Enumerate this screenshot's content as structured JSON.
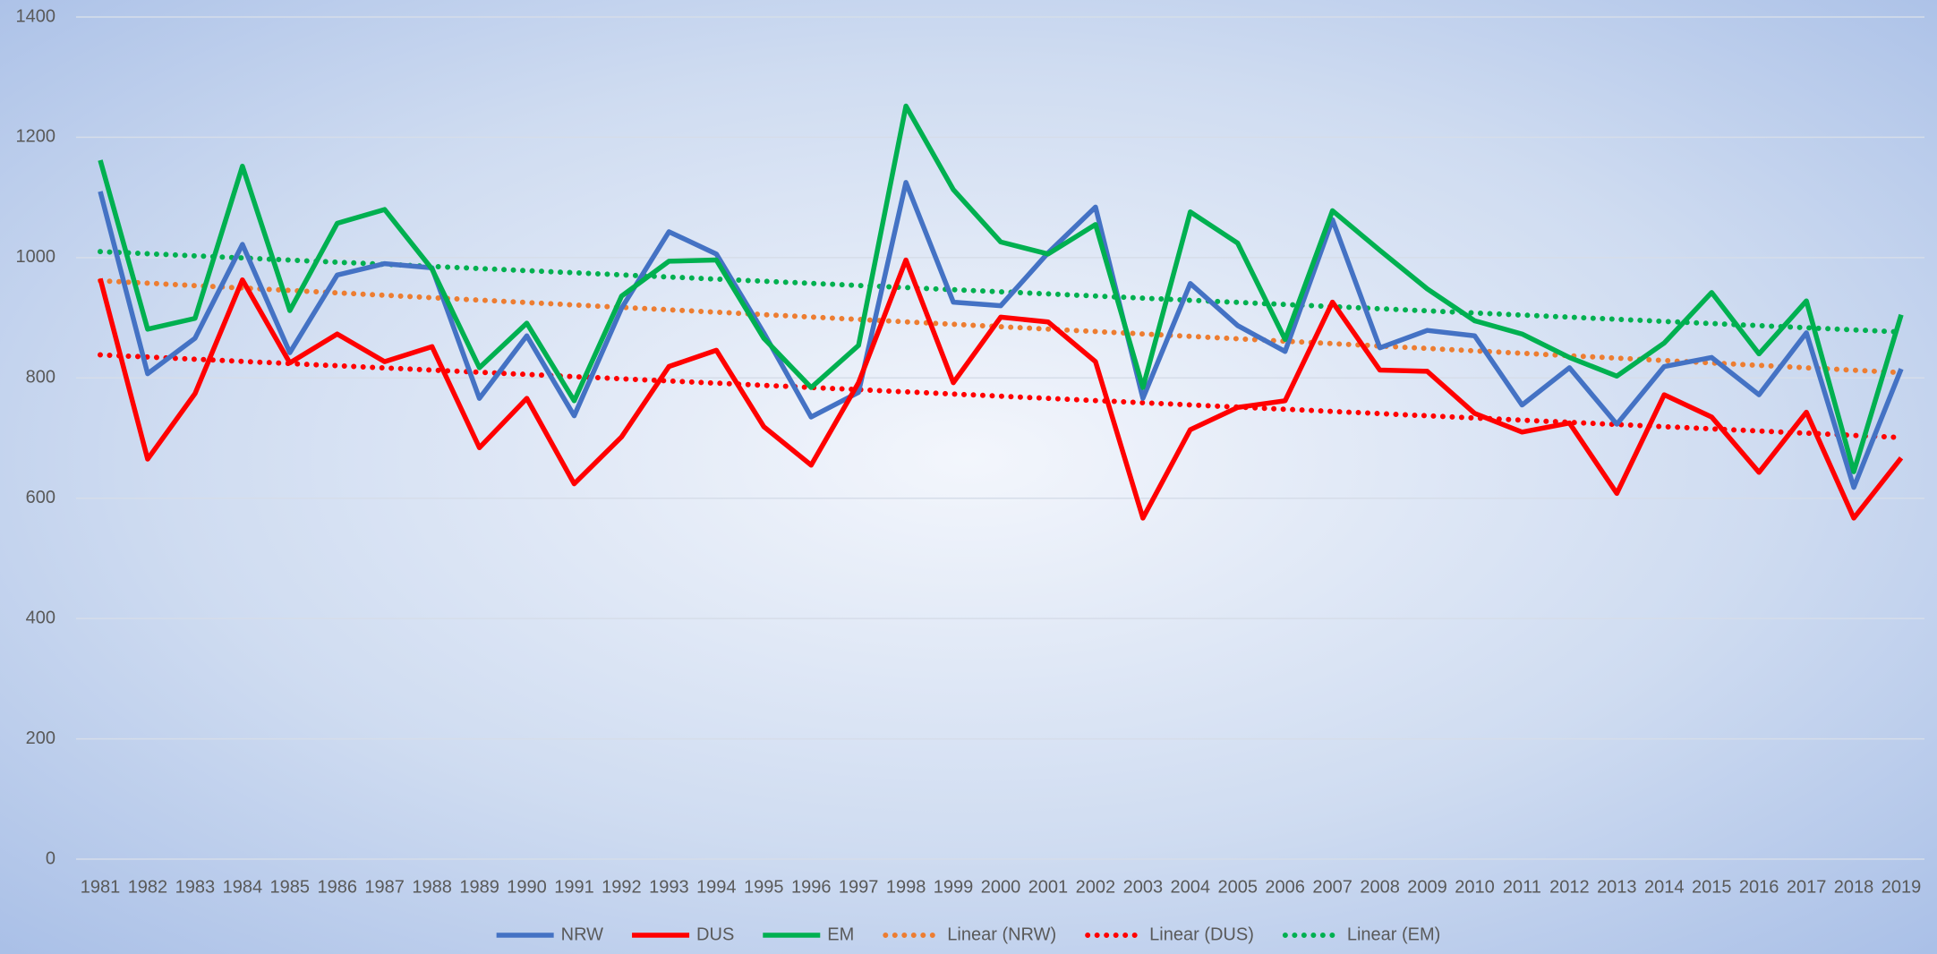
{
  "chart_data": {
    "type": "line",
    "categories": [
      "1981",
      "1982",
      "1983",
      "1984",
      "1985",
      "1986",
      "1987",
      "1988",
      "1989",
      "1990",
      "1991",
      "1992",
      "1993",
      "1994",
      "1995",
      "1996",
      "1997",
      "1998",
      "1999",
      "2000",
      "2001",
      "2002",
      "2003",
      "2004",
      "2005",
      "2006",
      "2007",
      "2008",
      "2009",
      "2010",
      "2011",
      "2012",
      "2013",
      "2014",
      "2015",
      "2016",
      "2017",
      "2018",
      "2019"
    ],
    "ylim": [
      0,
      1400
    ],
    "yticks": [
      0,
      200,
      400,
      600,
      800,
      1000,
      1200,
      1400
    ],
    "grid": true,
    "legend": "bottom",
    "series": [
      {
        "name": "NRW",
        "color": "#4472c4",
        "values": [
          1110,
          807,
          866,
          1022,
          842,
          971,
          990,
          983,
          766,
          870,
          737,
          916,
          1043,
          1006,
          875,
          735,
          776,
          1125,
          926,
          920,
          1008,
          1084,
          766,
          957,
          887,
          844,
          1063,
          850,
          879,
          870,
          755,
          817,
          723,
          819,
          834,
          772,
          875,
          618,
          815
        ],
        "trendline": {
          "name": "Linear (NRW)",
          "color": "#ed7d31"
        }
      },
      {
        "name": "DUS",
        "color": "#ff0000",
        "values": [
          965,
          665,
          774,
          963,
          825,
          873,
          827,
          852,
          684,
          766,
          624,
          702,
          819,
          846,
          719,
          655,
          792,
          996,
          792,
          901,
          893,
          827,
          567,
          714,
          751,
          762,
          926,
          813,
          811,
          741,
          710,
          725,
          608,
          772,
          735,
          643,
          743,
          567,
          667
        ],
        "trendline": {
          "name": "Linear (DUS)",
          "color": "#ff0000"
        }
      },
      {
        "name": "EM",
        "color": "#00b050",
        "values": [
          1162,
          881,
          899,
          1152,
          912,
          1057,
          1080,
          981,
          817,
          891,
          762,
          936,
          994,
          996,
          866,
          784,
          854,
          1252,
          1113,
          1026,
          1006,
          1055,
          784,
          1076,
          1024,
          864,
          1078,
          1012,
          948,
          895,
          873,
          834,
          803,
          858,
          942,
          840,
          928,
          644,
          905
        ],
        "trendline": {
          "name": "Linear (EM)",
          "color": "#00b050"
        }
      }
    ]
  }
}
